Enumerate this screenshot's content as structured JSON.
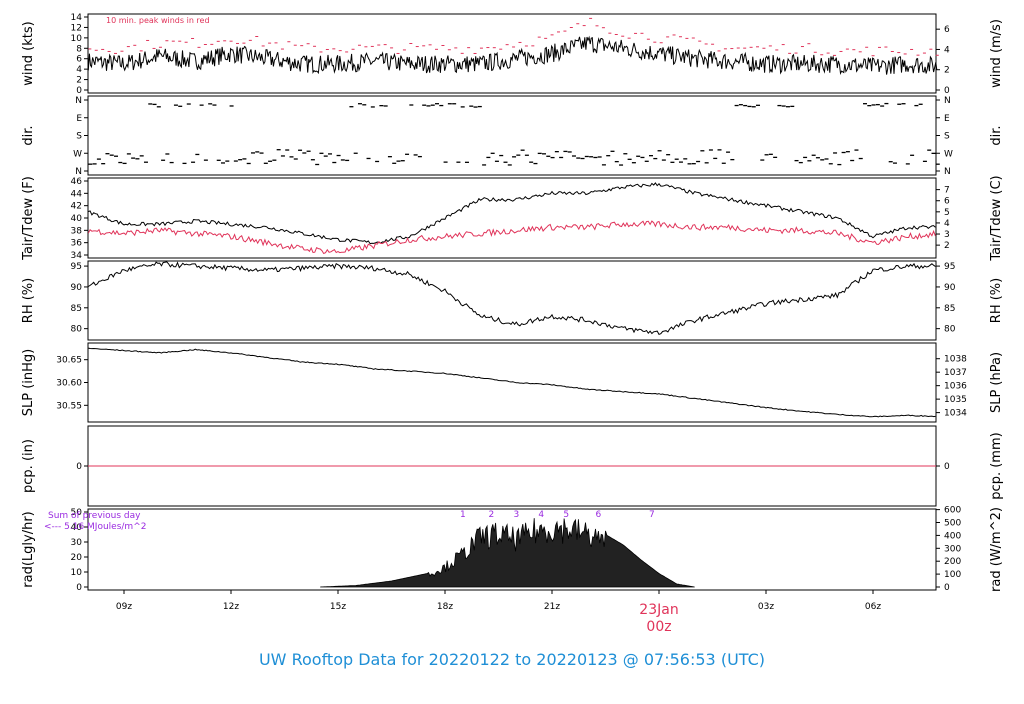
{
  "title": "UW Rooftop Data for 20220122  to  20220123 @ 07:56:53  (UTC)",
  "colors": {
    "primary": "#000000",
    "accent": "#e0345a",
    "purple": "#9a2be0",
    "title": "#1f8fd6"
  },
  "x_axis": {
    "tick_labels": [
      "09z",
      "12z",
      "15z",
      "18z",
      "21z",
      "00z",
      "03z",
      "06z"
    ],
    "date_label": "23Jan",
    "date_sublabel": "00z"
  },
  "panels": {
    "wind": {
      "ylabel_left": "wind (kts)",
      "ylabel_right": "wind (m/s)",
      "annotation": "10 min. peak winds in red",
      "left_ticks": [
        "0",
        "2",
        "4",
        "6",
        "8",
        "10",
        "12",
        "14"
      ],
      "right_ticks": [
        "0",
        "2",
        "4",
        "6"
      ]
    },
    "dir": {
      "ylabel_left": "dir.",
      "ylabel_right": "dir.",
      "left_ticks": [
        "N",
        "E",
        "S",
        "W",
        "N"
      ],
      "right_ticks": [
        "N",
        "E",
        "S",
        "W",
        "N"
      ]
    },
    "temp": {
      "ylabel_left": "Tair/Tdew (F)",
      "ylabel_right": "Tair/Tdew (C)",
      "left_ticks": [
        "34",
        "36",
        "38",
        "40",
        "42",
        "44",
        "46"
      ],
      "right_ticks": [
        "2",
        "3",
        "4",
        "5",
        "6",
        "7"
      ]
    },
    "rh": {
      "ylabel_left": "RH (%)",
      "ylabel_right": "RH (%)",
      "left_ticks": [
        "80",
        "85",
        "90",
        "95"
      ],
      "right_ticks": [
        "80",
        "85",
        "90",
        "95"
      ]
    },
    "slp": {
      "ylabel_left": "SLP (inHg)",
      "ylabel_right": "SLP (hPa)",
      "left_ticks": [
        "30.55",
        "30.60",
        "30.65"
      ],
      "right_ticks": [
        "1034",
        "1035",
        "1036",
        "1037",
        "1038"
      ]
    },
    "pcp": {
      "ylabel_left": "pcp. (in)",
      "ylabel_right": "pcp. (mm)",
      "left_ticks": [
        "0"
      ],
      "right_ticks": [
        "0"
      ]
    },
    "rad": {
      "ylabel_left": "rad(Lgly/hr)",
      "ylabel_right": "rad (W/m^2)",
      "left_ticks": [
        "0",
        "10",
        "20",
        "30",
        "40",
        "50"
      ],
      "right_ticks": [
        "0",
        "100",
        "200",
        "300",
        "400",
        "500",
        "600"
      ],
      "note_line1": "Sum of previous day",
      "note_line2": "<--- 5.16 MJoules/m^2",
      "markers": [
        "1",
        "2",
        "3",
        "4",
        "5",
        "6",
        "7"
      ]
    }
  },
  "chart_data": [
    {
      "type": "line",
      "ylabel": "wind (kts)",
      "ylim": [
        0,
        14
      ],
      "x_unit": "hours from 08z",
      "x": [
        0,
        1,
        2,
        3,
        4,
        5,
        6,
        7,
        8,
        9,
        10,
        11,
        12,
        13,
        14,
        15,
        16,
        17,
        18,
        19,
        20,
        21,
        22,
        23,
        24
      ],
      "series": [
        {
          "name": "wind",
          "values": [
            5.5,
            5,
            6.5,
            5.5,
            7,
            6,
            5,
            5,
            5.5,
            5,
            5,
            5,
            6,
            7,
            9,
            8,
            7,
            6,
            5.5,
            5,
            5,
            5,
            4.5,
            5,
            4.5
          ]
        },
        {
          "name": "10 min peak",
          "values": [
            8,
            8,
            9,
            9,
            10,
            9,
            8,
            8,
            8,
            8,
            8,
            8,
            9,
            10,
            13,
            11,
            10,
            9,
            8,
            8,
            8,
            7.5,
            7.5,
            7.5,
            7.5
          ]
        }
      ]
    },
    {
      "type": "scatter",
      "ylabel": "dir.",
      "categories": [
        "N",
        "E",
        "S",
        "W",
        "N"
      ]
    },
    {
      "type": "line",
      "ylabel": "Tair/Tdew (F)",
      "ylim": [
        34,
        46
      ],
      "x": [
        0,
        1,
        2,
        3,
        4,
        5,
        6,
        7,
        8,
        9,
        10,
        11,
        12,
        13,
        14,
        15,
        16,
        17,
        18,
        19,
        20,
        21,
        22,
        23,
        24
      ],
      "series": [
        {
          "name": "Tair",
          "values": [
            41,
            39,
            39,
            39.5,
            39,
            38.5,
            37.5,
            36.5,
            36,
            37,
            40,
            43,
            43,
            44,
            44,
            45,
            45.5,
            44,
            43,
            42,
            41,
            40,
            37,
            38.5,
            38.5
          ]
        },
        {
          "name": "Tdew",
          "values": [
            38,
            37.5,
            38,
            37.5,
            37,
            36,
            35,
            34.5,
            35.5,
            36.5,
            37,
            37.5,
            38,
            38.5,
            38.5,
            39,
            39,
            38.5,
            38.5,
            38,
            38,
            37.5,
            36,
            37,
            37.5
          ]
        }
      ]
    },
    {
      "type": "line",
      "ylabel": "RH (%)",
      "ylim": [
        78,
        95
      ],
      "x": [
        0,
        1,
        2,
        3,
        4,
        5,
        6,
        7,
        8,
        9,
        10,
        11,
        12,
        13,
        14,
        15,
        16,
        17,
        18,
        19,
        20,
        21,
        22,
        23,
        24
      ],
      "series": [
        {
          "name": "RH",
          "values": [
            90,
            94,
            95.5,
            95,
            94.5,
            94,
            94.5,
            95,
            94.5,
            93,
            89,
            83,
            81,
            83,
            82,
            80,
            79,
            82,
            84,
            86,
            87,
            88,
            94,
            95,
            95
          ]
        }
      ]
    },
    {
      "type": "line",
      "ylabel": "SLP (inHg)",
      "ylim": [
        30.52,
        30.68
      ],
      "x": [
        0,
        1,
        2,
        3,
        4,
        5,
        6,
        7,
        8,
        9,
        10,
        11,
        12,
        13,
        14,
        15,
        16,
        17,
        18,
        19,
        20,
        21,
        22,
        23,
        24
      ],
      "series": [
        {
          "name": "SLP",
          "values": [
            30.675,
            30.67,
            30.665,
            30.672,
            30.665,
            30.655,
            30.645,
            30.64,
            30.63,
            30.625,
            30.62,
            30.61,
            30.6,
            30.595,
            30.585,
            30.58,
            30.575,
            30.565,
            30.555,
            30.545,
            30.537,
            30.53,
            30.525,
            30.528,
            30.525
          ]
        }
      ]
    },
    {
      "type": "line",
      "ylabel": "pcp. (in)",
      "ylim": [
        -1,
        1
      ],
      "series": [
        {
          "name": "pcp",
          "values": [
            0
          ]
        }
      ]
    },
    {
      "type": "area",
      "ylabel": "rad(Lgly/hr)",
      "ylim": [
        0,
        50
      ],
      "x": [
        6.5,
        7.5,
        8.5,
        9.5,
        10,
        10.5,
        11,
        11.5,
        12,
        12.5,
        13,
        13.5,
        14,
        14.5,
        15,
        15.5,
        16,
        16.5,
        17
      ],
      "series": [
        {
          "name": "rad",
          "values": [
            0,
            1,
            4,
            9,
            15,
            25,
            38,
            40,
            36,
            42,
            45,
            44,
            40,
            35,
            28,
            18,
            9,
            2,
            0
          ]
        }
      ]
    }
  ]
}
